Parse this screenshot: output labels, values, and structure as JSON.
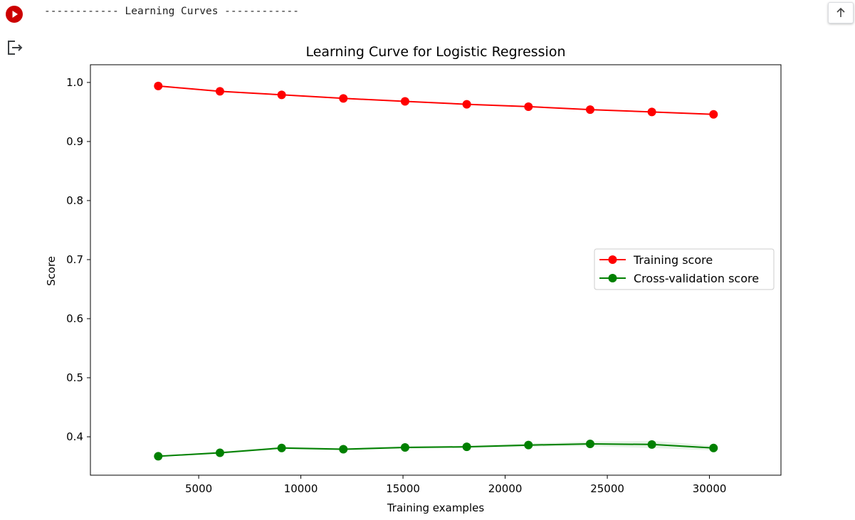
{
  "cell": {
    "output_text": "------------ Learning Curves ------------"
  },
  "colors": {
    "run_button": "#cc0000",
    "training": "#ff0000",
    "validation": "#008000",
    "validation_band": "#b8dcb8"
  },
  "icons": {
    "run": "play-icon",
    "output": "output-redirect-icon",
    "scroll": "arrow-up-icon"
  },
  "chart_data": {
    "type": "line",
    "title": "Learning Curve for Logistic Regression",
    "xlabel": "Training examples",
    "ylabel": "Score",
    "x": [
      3020,
      6040,
      9060,
      12080,
      15100,
      18120,
      21140,
      24160,
      27180,
      30200
    ],
    "xlim": [
      -300,
      33500
    ],
    "ylim": [
      0.335,
      1.03
    ],
    "xticks": [
      5000,
      10000,
      15000,
      20000,
      25000,
      30000
    ],
    "yticks": [
      0.4,
      0.5,
      0.6,
      0.7,
      0.8,
      0.9,
      1.0
    ],
    "xtick_labels": [
      "5000",
      "10000",
      "15000",
      "20000",
      "25000",
      "30000"
    ],
    "ytick_labels": [
      "0.4",
      "0.5",
      "0.6",
      "0.7",
      "0.8",
      "0.9",
      "1.0"
    ],
    "grid": false,
    "legend_position": "center-right",
    "series": [
      {
        "name": "Training score",
        "color": "#ff0000",
        "values": [
          0.994,
          0.985,
          0.979,
          0.973,
          0.968,
          0.963,
          0.959,
          0.954,
          0.95,
          0.946
        ],
        "band": [
          0.0005,
          0.0005,
          0.0005,
          0.0005,
          0.0005,
          0.0005,
          0.0005,
          0.0005,
          0.0005,
          0.0005
        ]
      },
      {
        "name": "Cross-validation score",
        "color": "#008000",
        "values": [
          0.367,
          0.373,
          0.381,
          0.379,
          0.382,
          0.383,
          0.386,
          0.388,
          0.387,
          0.381
        ],
        "band": [
          0.001,
          0.002,
          0.002,
          0.002,
          0.002,
          0.002,
          0.003,
          0.004,
          0.006,
          0.004
        ]
      }
    ]
  }
}
